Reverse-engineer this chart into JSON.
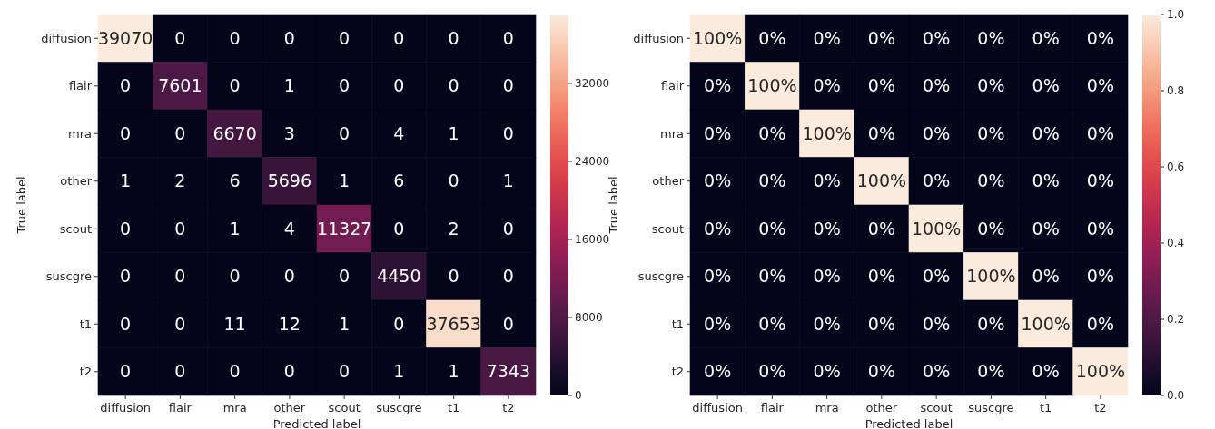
{
  "chart_data": [
    {
      "type": "heatmap",
      "xlabel": "Predicted label",
      "ylabel": "True label",
      "categories": [
        "diffusion",
        "flair",
        "mra",
        "other",
        "scout",
        "suscgre",
        "t1",
        "t2"
      ],
      "y_categories": [
        "diffusion",
        "flair",
        "mra",
        "other",
        "scout",
        "suscgre",
        "t1",
        "t2"
      ],
      "cells": [
        [
          39070,
          0,
          0,
          0,
          0,
          0,
          0,
          0
        ],
        [
          0,
          7601,
          0,
          1,
          0,
          0,
          0,
          0
        ],
        [
          0,
          0,
          6670,
          3,
          0,
          4,
          1,
          0
        ],
        [
          1,
          2,
          6,
          5696,
          1,
          6,
          0,
          1
        ],
        [
          0,
          0,
          1,
          4,
          11327,
          0,
          2,
          0
        ],
        [
          0,
          0,
          0,
          0,
          0,
          4450,
          0,
          0
        ],
        [
          0,
          0,
          11,
          12,
          1,
          0,
          37653,
          0
        ],
        [
          0,
          0,
          0,
          0,
          0,
          1,
          1,
          7343
        ]
      ],
      "clim": [
        0,
        39070
      ],
      "cticks": [
        0,
        8000,
        16000,
        24000,
        32000
      ],
      "data_labels": true
    },
    {
      "type": "heatmap",
      "xlabel": "Predicted label",
      "ylabel": "True label",
      "categories": [
        "diffusion",
        "flair",
        "mra",
        "other",
        "scout",
        "suscgre",
        "t1",
        "t2"
      ],
      "y_categories": [
        "diffusion",
        "flair",
        "mra",
        "other",
        "scout",
        "suscgre",
        "t1",
        "t2"
      ],
      "cells": [
        [
          1,
          0,
          0,
          0,
          0,
          0,
          0,
          0
        ],
        [
          0,
          1,
          0,
          0,
          0,
          0,
          0,
          0
        ],
        [
          0,
          0,
          1,
          0,
          0,
          0,
          0,
          0
        ],
        [
          0,
          0,
          0,
          1,
          0,
          0,
          0,
          0
        ],
        [
          0,
          0,
          0,
          0,
          1,
          0,
          0,
          0
        ],
        [
          0,
          0,
          0,
          0,
          0,
          1,
          0,
          0
        ],
        [
          0,
          0,
          0,
          0,
          0,
          0,
          1,
          0
        ],
        [
          0,
          0,
          0,
          0,
          0,
          0,
          0,
          1
        ]
      ],
      "cell_labels": [
        [
          "100%",
          "0%",
          "0%",
          "0%",
          "0%",
          "0%",
          "0%",
          "0%"
        ],
        [
          "0%",
          "100%",
          "0%",
          "0%",
          "0%",
          "0%",
          "0%",
          "0%"
        ],
        [
          "0%",
          "0%",
          "100%",
          "0%",
          "0%",
          "0%",
          "0%",
          "0%"
        ],
        [
          "0%",
          "0%",
          "0%",
          "100%",
          "0%",
          "0%",
          "0%",
          "0%"
        ],
        [
          "0%",
          "0%",
          "0%",
          "0%",
          "100%",
          "0%",
          "0%",
          "0%"
        ],
        [
          "0%",
          "0%",
          "0%",
          "0%",
          "0%",
          "100%",
          "0%",
          "0%"
        ],
        [
          "0%",
          "0%",
          "0%",
          "0%",
          "0%",
          "0%",
          "100%",
          "0%"
        ],
        [
          "0%",
          "0%",
          "0%",
          "0%",
          "0%",
          "0%",
          "0%",
          "100%"
        ]
      ],
      "clim": [
        0,
        1
      ],
      "cticks": [
        {
          "value": 0,
          "label": "0.0"
        },
        {
          "value": 0.2,
          "label": "0.2"
        },
        {
          "value": 0.4,
          "label": "0.4"
        },
        {
          "value": 0.6,
          "label": "0.6"
        },
        {
          "value": 0.8,
          "label": "0.8"
        },
        {
          "value": 1,
          "label": "1.0"
        }
      ]
    }
  ]
}
